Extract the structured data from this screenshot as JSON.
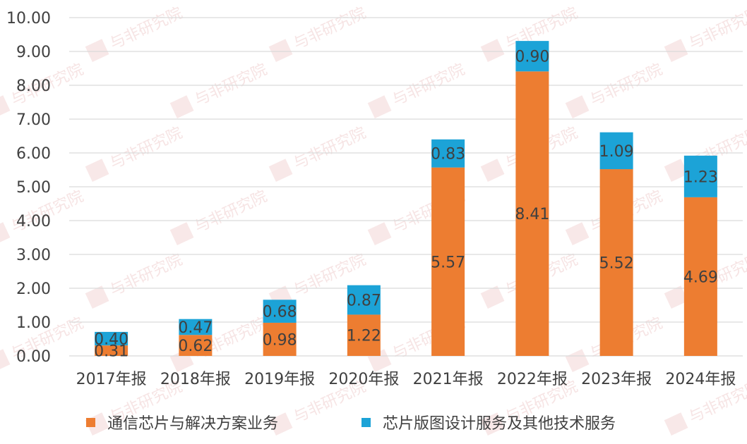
{
  "chart_data": {
    "type": "bar",
    "stacked": true,
    "categories": [
      "2017年报",
      "2018年报",
      "2019年报",
      "2020年报",
      "2021年报",
      "2022年报",
      "2023年报",
      "2024年报"
    ],
    "series": [
      {
        "name": "通信芯片与解决方案业务",
        "color": "#ED7D31",
        "values": [
          0.31,
          0.62,
          0.98,
          1.22,
          5.57,
          8.41,
          5.52,
          4.69
        ],
        "labels": [
          "0.31",
          "0.62",
          "0.98",
          "1.22",
          "5.57",
          "8.41",
          "5.52",
          "4.69"
        ]
      },
      {
        "name": "芯片版图设计服务及其他技术服务",
        "color": "#1CA3D7",
        "values": [
          0.4,
          0.47,
          0.68,
          0.87,
          0.83,
          0.9,
          1.09,
          1.23
        ],
        "labels": [
          "0.40",
          "0.47",
          "0.68",
          "0.87",
          "0.83",
          "0.90",
          "1.09",
          "1.23"
        ]
      }
    ],
    "ylim": [
      0,
      10
    ],
    "yticks": [
      "0.00",
      "1.00",
      "2.00",
      "3.00",
      "4.00",
      "5.00",
      "6.00",
      "7.00",
      "8.00",
      "9.00",
      "10.00"
    ],
    "grid": true,
    "legend_position": "bottom",
    "watermark": "与非研究院"
  }
}
